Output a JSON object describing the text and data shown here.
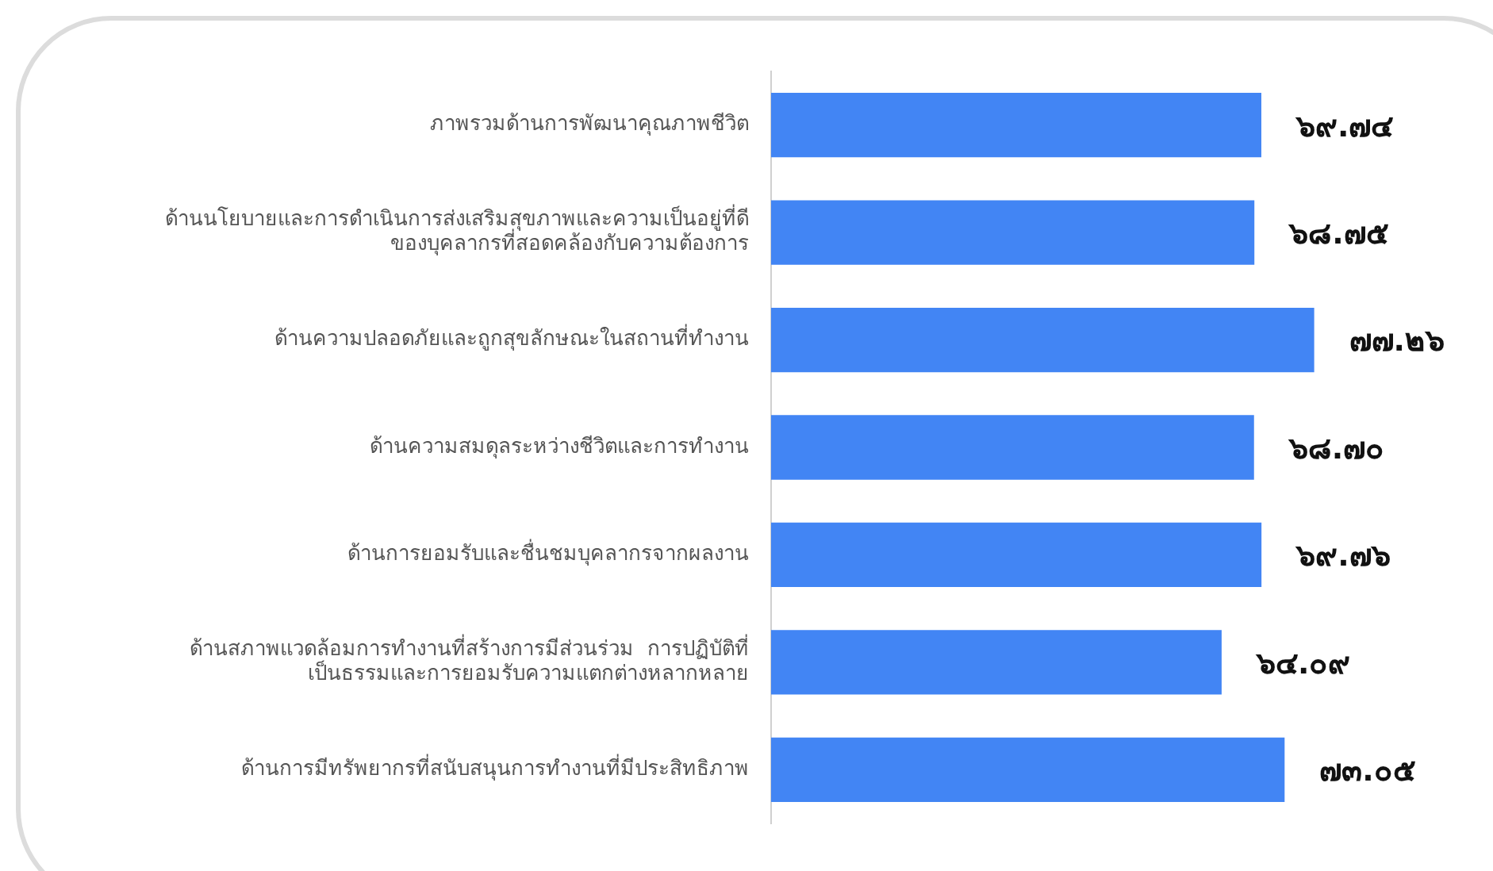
{
  "chart_data": {
    "type": "bar",
    "orientation": "horizontal",
    "categories": [
      "ภาพรวมด้านการพัฒนาคุณภาพชีวิต",
      "ด้านนโยบายและการดำเนินการส่งเสริมสุขภาพและความเป็นอยู่ที่ดี\nของบุคลากรที่สอดคล้องกับความต้องการ",
      "ด้านความปลอดภัยและถูกสุขลักษณะในสถานที่ทำงาน",
      "ด้านความสมดุลระหว่างชีวิตและการทำงาน",
      "ด้านการยอมรับและชื่นชมบุคลากรจากผลงาน",
      "ด้านสภาพแวดล้อมการทำงานที่สร้างการมีส่วนร่วม  การปฏิบัติที่\nเป็นธรรมและการยอมรับความแตกต่างหลากหลาย",
      "ด้านการมีทรัพยากรที่สนับสนุนการทำงานที่มีประสิทธิภาพ"
    ],
    "values": [
      69.74,
      68.75,
      77.26,
      68.7,
      69.76,
      64.09,
      73.05
    ],
    "value_labels": [
      "๖๙.๗๔",
      "๖๘.๗๕",
      "๗๗.๒๖",
      "๖๘.๗๐",
      "๖๙.๗๖",
      "๖๔.๐๙",
      "๗๓.๐๕"
    ],
    "color": "#4285f4",
    "grid": false,
    "legend": false
  }
}
